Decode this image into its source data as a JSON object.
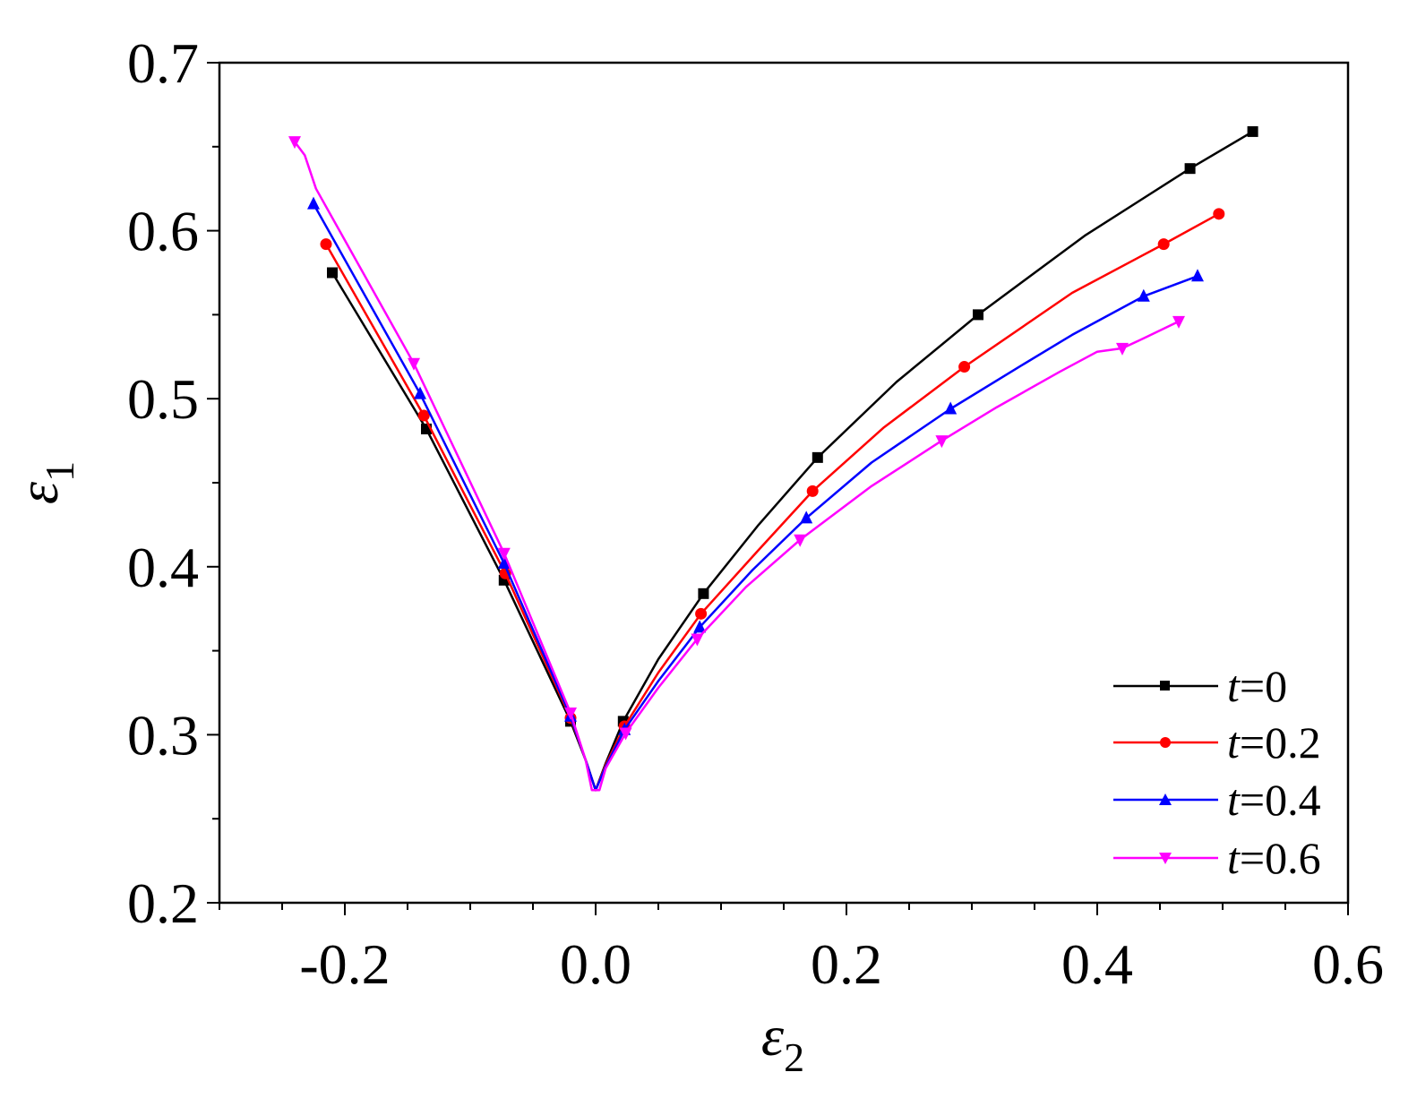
{
  "chart_data": {
    "type": "line",
    "title": "",
    "xlabel": "ε2",
    "xlabel_main": "ε",
    "xlabel_sub": "2",
    "ylabel": "ε1",
    "ylabel_main": "ε",
    "ylabel_sub": "1",
    "xlim": [
      -0.3,
      0.6
    ],
    "ylim": [
      0.2,
      0.7
    ],
    "xticks": [
      -0.2,
      0.0,
      0.2,
      0.4,
      0.6
    ],
    "xtick_labels": [
      "-0.2",
      "0.0",
      "0.2",
      "0.4",
      "0.6"
    ],
    "yticks": [
      0.2,
      0.3,
      0.4,
      0.5,
      0.6,
      0.7
    ],
    "ytick_labels": [
      "0.2",
      "0.3",
      "0.4",
      "0.5",
      "0.6",
      "0.7"
    ],
    "grid": false,
    "legend_position": "bottom-right",
    "series": [
      {
        "name": "t=0",
        "legend_var": "t",
        "legend_rest": "=0",
        "color": "#000000",
        "marker": "square",
        "line": [
          [
            -0.21,
            0.575
          ],
          [
            -0.135,
            0.482
          ],
          [
            -0.073,
            0.392
          ],
          [
            -0.02,
            0.308
          ],
          [
            -0.008,
            0.285
          ],
          [
            0.0,
            0.267
          ],
          [
            0.008,
            0.283
          ],
          [
            0.022,
            0.308
          ],
          [
            0.05,
            0.345
          ],
          [
            0.086,
            0.384
          ],
          [
            0.13,
            0.425
          ],
          [
            0.177,
            0.465
          ],
          [
            0.24,
            0.51
          ],
          [
            0.305,
            0.55
          ],
          [
            0.39,
            0.597
          ],
          [
            0.474,
            0.637
          ],
          [
            0.524,
            0.659
          ]
        ],
        "markers": [
          [
            -0.21,
            0.575
          ],
          [
            -0.135,
            0.482
          ],
          [
            -0.073,
            0.392
          ],
          [
            -0.02,
            0.308
          ],
          [
            0.022,
            0.308
          ],
          [
            0.086,
            0.384
          ],
          [
            0.177,
            0.465
          ],
          [
            0.305,
            0.55
          ],
          [
            0.474,
            0.637
          ],
          [
            0.524,
            0.659
          ]
        ]
      },
      {
        "name": "t=0.2",
        "legend_var": "t",
        "legend_rest": "=0.2",
        "color": "#ff0000",
        "marker": "circle",
        "line": [
          [
            -0.215,
            0.592
          ],
          [
            -0.137,
            0.49
          ],
          [
            -0.072,
            0.396
          ],
          [
            -0.02,
            0.31
          ],
          [
            -0.008,
            0.285
          ],
          [
            0.0,
            0.267
          ],
          [
            0.008,
            0.282
          ],
          [
            0.023,
            0.305
          ],
          [
            0.05,
            0.337
          ],
          [
            0.084,
            0.372
          ],
          [
            0.13,
            0.41
          ],
          [
            0.173,
            0.445
          ],
          [
            0.23,
            0.483
          ],
          [
            0.294,
            0.519
          ],
          [
            0.38,
            0.563
          ],
          [
            0.453,
            0.592
          ],
          [
            0.497,
            0.61
          ]
        ],
        "markers": [
          [
            -0.215,
            0.592
          ],
          [
            -0.137,
            0.49
          ],
          [
            -0.072,
            0.396
          ],
          [
            -0.02,
            0.31
          ],
          [
            0.023,
            0.305
          ],
          [
            0.084,
            0.372
          ],
          [
            0.173,
            0.445
          ],
          [
            0.294,
            0.519
          ],
          [
            0.453,
            0.592
          ],
          [
            0.497,
            0.61
          ]
        ]
      },
      {
        "name": "t=0.4",
        "legend_var": "t",
        "legend_rest": "=0.4",
        "color": "#0000ff",
        "marker": "triangle-up",
        "line": [
          [
            -0.225,
            0.616
          ],
          [
            -0.14,
            0.503
          ],
          [
            -0.073,
            0.402
          ],
          [
            -0.02,
            0.311
          ],
          [
            -0.008,
            0.285
          ],
          [
            0.0,
            0.267
          ],
          [
            0.008,
            0.281
          ],
          [
            0.023,
            0.303
          ],
          [
            0.05,
            0.332
          ],
          [
            0.083,
            0.364
          ],
          [
            0.125,
            0.398
          ],
          [
            0.168,
            0.429
          ],
          [
            0.22,
            0.462
          ],
          [
            0.283,
            0.494
          ],
          [
            0.34,
            0.52
          ],
          [
            0.38,
            0.538
          ],
          [
            0.437,
            0.561
          ],
          [
            0.48,
            0.573
          ]
        ],
        "markers": [
          [
            -0.225,
            0.616
          ],
          [
            -0.14,
            0.503
          ],
          [
            -0.073,
            0.402
          ],
          [
            -0.02,
            0.311
          ],
          [
            0.023,
            0.303
          ],
          [
            0.083,
            0.364
          ],
          [
            0.168,
            0.429
          ],
          [
            0.283,
            0.494
          ],
          [
            0.437,
            0.561
          ],
          [
            0.48,
            0.573
          ]
        ]
      },
      {
        "name": "t=0.6",
        "legend_var": "t",
        "legend_rest": "=0.6",
        "color": "#ff00ff",
        "marker": "triangle-down",
        "line": [
          [
            -0.24,
            0.653
          ],
          [
            -0.232,
            0.645
          ],
          [
            -0.223,
            0.625
          ],
          [
            -0.145,
            0.521
          ],
          [
            -0.073,
            0.408
          ],
          [
            -0.02,
            0.313
          ],
          [
            -0.008,
            0.285
          ],
          [
            -0.003,
            0.267
          ],
          [
            0.003,
            0.267
          ],
          [
            0.008,
            0.28
          ],
          [
            0.024,
            0.301
          ],
          [
            0.05,
            0.328
          ],
          [
            0.081,
            0.357
          ],
          [
            0.12,
            0.388
          ],
          [
            0.163,
            0.416
          ],
          [
            0.22,
            0.448
          ],
          [
            0.276,
            0.475
          ],
          [
            0.32,
            0.495
          ],
          [
            0.37,
            0.516
          ],
          [
            0.4,
            0.528
          ],
          [
            0.42,
            0.53
          ],
          [
            0.44,
            0.537
          ],
          [
            0.465,
            0.546
          ]
        ],
        "markers": [
          [
            -0.24,
            0.653
          ],
          [
            -0.145,
            0.521
          ],
          [
            -0.073,
            0.408
          ],
          [
            -0.02,
            0.313
          ],
          [
            0.024,
            0.301
          ],
          [
            0.081,
            0.357
          ],
          [
            0.163,
            0.416
          ],
          [
            0.276,
            0.475
          ],
          [
            0.42,
            0.53
          ],
          [
            0.465,
            0.546
          ]
        ]
      }
    ]
  }
}
